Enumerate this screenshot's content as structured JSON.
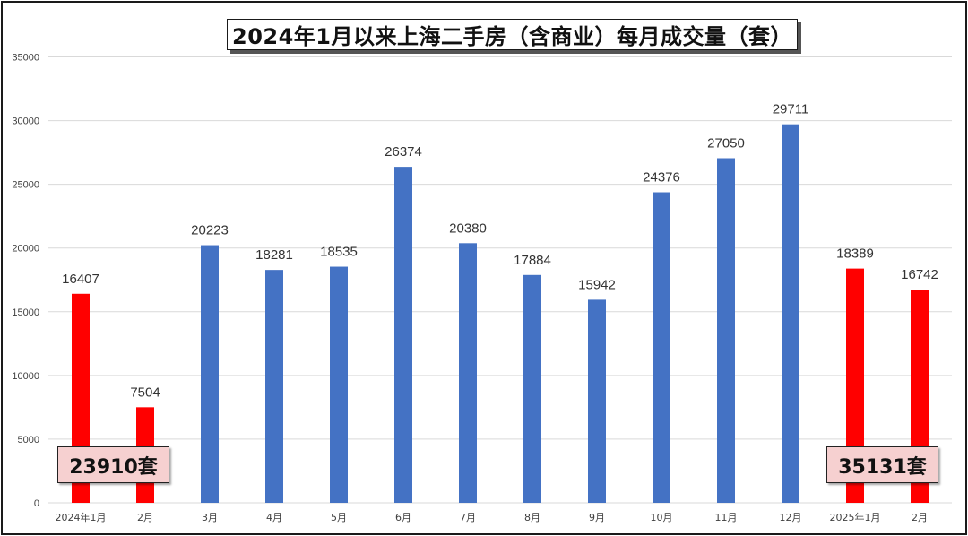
{
  "chart_data": {
    "type": "bar",
    "title": "2024年1月以来上海二手房（含商业）每月成交量（套）",
    "categories": [
      "2024年1月",
      "2月",
      "3月",
      "4月",
      "5月",
      "6月",
      "7月",
      "8月",
      "9月",
      "10月",
      "11月",
      "12月",
      "2025年1月",
      "2月"
    ],
    "values": [
      16407,
      7504,
      20223,
      18281,
      18535,
      26374,
      20380,
      17884,
      15942,
      24376,
      27050,
      29711,
      18389,
      16742
    ],
    "bar_colors": [
      "#ff0000",
      "#ff0000",
      "#4472c4",
      "#4472c4",
      "#4472c4",
      "#4472c4",
      "#4472c4",
      "#4472c4",
      "#4472c4",
      "#4472c4",
      "#4472c4",
      "#4472c4",
      "#ff0000",
      "#ff0000"
    ],
    "ylim": [
      0,
      35000
    ],
    "yticks": [
      0,
      5000,
      10000,
      15000,
      20000,
      25000,
      30000,
      35000
    ],
    "grid": true,
    "data_labels": true,
    "annotations": [
      {
        "text": "23910套",
        "anchor": "2024年1月-2月"
      },
      {
        "text": "35131套",
        "anchor": "2025年1月-2月"
      }
    ]
  },
  "colors": {
    "red_bar": "#ff0000",
    "blue_bar": "#4472c4",
    "gridline": "#d9d9d9",
    "annotation_fill": "#f6d0d0"
  }
}
